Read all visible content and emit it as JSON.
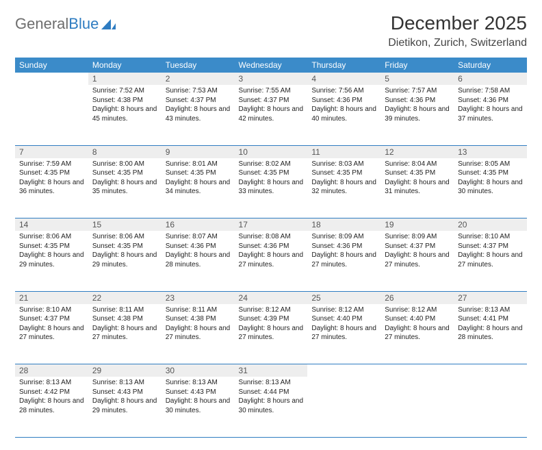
{
  "brand": {
    "part1": "General",
    "part2": "Blue"
  },
  "title": "December 2025",
  "location": "Dietikon, Zurich, Switzerland",
  "colors": {
    "header_bg": "#3b8bc9",
    "header_text": "#ffffff",
    "daynum_bg": "#eeeeee",
    "rule": "#2e7cc1",
    "logo_gray": "#6d6d6d",
    "logo_blue": "#2e7cc1"
  },
  "fonts": {
    "title_size": 28,
    "location_size": 16,
    "th_size": 12,
    "daynum_size": 12,
    "body_size": 10
  },
  "weekdays": [
    "Sunday",
    "Monday",
    "Tuesday",
    "Wednesday",
    "Thursday",
    "Friday",
    "Saturday"
  ],
  "weeks": [
    [
      null,
      {
        "n": "1",
        "sr": "Sunrise: 7:52 AM",
        "ss": "Sunset: 4:38 PM",
        "dl": "Daylight: 8 hours and 45 minutes."
      },
      {
        "n": "2",
        "sr": "Sunrise: 7:53 AM",
        "ss": "Sunset: 4:37 PM",
        "dl": "Daylight: 8 hours and 43 minutes."
      },
      {
        "n": "3",
        "sr": "Sunrise: 7:55 AM",
        "ss": "Sunset: 4:37 PM",
        "dl": "Daylight: 8 hours and 42 minutes."
      },
      {
        "n": "4",
        "sr": "Sunrise: 7:56 AM",
        "ss": "Sunset: 4:36 PM",
        "dl": "Daylight: 8 hours and 40 minutes."
      },
      {
        "n": "5",
        "sr": "Sunrise: 7:57 AM",
        "ss": "Sunset: 4:36 PM",
        "dl": "Daylight: 8 hours and 39 minutes."
      },
      {
        "n": "6",
        "sr": "Sunrise: 7:58 AM",
        "ss": "Sunset: 4:36 PM",
        "dl": "Daylight: 8 hours and 37 minutes."
      }
    ],
    [
      {
        "n": "7",
        "sr": "Sunrise: 7:59 AM",
        "ss": "Sunset: 4:35 PM",
        "dl": "Daylight: 8 hours and 36 minutes."
      },
      {
        "n": "8",
        "sr": "Sunrise: 8:00 AM",
        "ss": "Sunset: 4:35 PM",
        "dl": "Daylight: 8 hours and 35 minutes."
      },
      {
        "n": "9",
        "sr": "Sunrise: 8:01 AM",
        "ss": "Sunset: 4:35 PM",
        "dl": "Daylight: 8 hours and 34 minutes."
      },
      {
        "n": "10",
        "sr": "Sunrise: 8:02 AM",
        "ss": "Sunset: 4:35 PM",
        "dl": "Daylight: 8 hours and 33 minutes."
      },
      {
        "n": "11",
        "sr": "Sunrise: 8:03 AM",
        "ss": "Sunset: 4:35 PM",
        "dl": "Daylight: 8 hours and 32 minutes."
      },
      {
        "n": "12",
        "sr": "Sunrise: 8:04 AM",
        "ss": "Sunset: 4:35 PM",
        "dl": "Daylight: 8 hours and 31 minutes."
      },
      {
        "n": "13",
        "sr": "Sunrise: 8:05 AM",
        "ss": "Sunset: 4:35 PM",
        "dl": "Daylight: 8 hours and 30 minutes."
      }
    ],
    [
      {
        "n": "14",
        "sr": "Sunrise: 8:06 AM",
        "ss": "Sunset: 4:35 PM",
        "dl": "Daylight: 8 hours and 29 minutes."
      },
      {
        "n": "15",
        "sr": "Sunrise: 8:06 AM",
        "ss": "Sunset: 4:35 PM",
        "dl": "Daylight: 8 hours and 29 minutes."
      },
      {
        "n": "16",
        "sr": "Sunrise: 8:07 AM",
        "ss": "Sunset: 4:36 PM",
        "dl": "Daylight: 8 hours and 28 minutes."
      },
      {
        "n": "17",
        "sr": "Sunrise: 8:08 AM",
        "ss": "Sunset: 4:36 PM",
        "dl": "Daylight: 8 hours and 27 minutes."
      },
      {
        "n": "18",
        "sr": "Sunrise: 8:09 AM",
        "ss": "Sunset: 4:36 PM",
        "dl": "Daylight: 8 hours and 27 minutes."
      },
      {
        "n": "19",
        "sr": "Sunrise: 8:09 AM",
        "ss": "Sunset: 4:37 PM",
        "dl": "Daylight: 8 hours and 27 minutes."
      },
      {
        "n": "20",
        "sr": "Sunrise: 8:10 AM",
        "ss": "Sunset: 4:37 PM",
        "dl": "Daylight: 8 hours and 27 minutes."
      }
    ],
    [
      {
        "n": "21",
        "sr": "Sunrise: 8:10 AM",
        "ss": "Sunset: 4:37 PM",
        "dl": "Daylight: 8 hours and 27 minutes."
      },
      {
        "n": "22",
        "sr": "Sunrise: 8:11 AM",
        "ss": "Sunset: 4:38 PM",
        "dl": "Daylight: 8 hours and 27 minutes."
      },
      {
        "n": "23",
        "sr": "Sunrise: 8:11 AM",
        "ss": "Sunset: 4:38 PM",
        "dl": "Daylight: 8 hours and 27 minutes."
      },
      {
        "n": "24",
        "sr": "Sunrise: 8:12 AM",
        "ss": "Sunset: 4:39 PM",
        "dl": "Daylight: 8 hours and 27 minutes."
      },
      {
        "n": "25",
        "sr": "Sunrise: 8:12 AM",
        "ss": "Sunset: 4:40 PM",
        "dl": "Daylight: 8 hours and 27 minutes."
      },
      {
        "n": "26",
        "sr": "Sunrise: 8:12 AM",
        "ss": "Sunset: 4:40 PM",
        "dl": "Daylight: 8 hours and 27 minutes."
      },
      {
        "n": "27",
        "sr": "Sunrise: 8:13 AM",
        "ss": "Sunset: 4:41 PM",
        "dl": "Daylight: 8 hours and 28 minutes."
      }
    ],
    [
      {
        "n": "28",
        "sr": "Sunrise: 8:13 AM",
        "ss": "Sunset: 4:42 PM",
        "dl": "Daylight: 8 hours and 28 minutes."
      },
      {
        "n": "29",
        "sr": "Sunrise: 8:13 AM",
        "ss": "Sunset: 4:43 PM",
        "dl": "Daylight: 8 hours and 29 minutes."
      },
      {
        "n": "30",
        "sr": "Sunrise: 8:13 AM",
        "ss": "Sunset: 4:43 PM",
        "dl": "Daylight: 8 hours and 30 minutes."
      },
      {
        "n": "31",
        "sr": "Sunrise: 8:13 AM",
        "ss": "Sunset: 4:44 PM",
        "dl": "Daylight: 8 hours and 30 minutes."
      },
      null,
      null,
      null
    ]
  ]
}
